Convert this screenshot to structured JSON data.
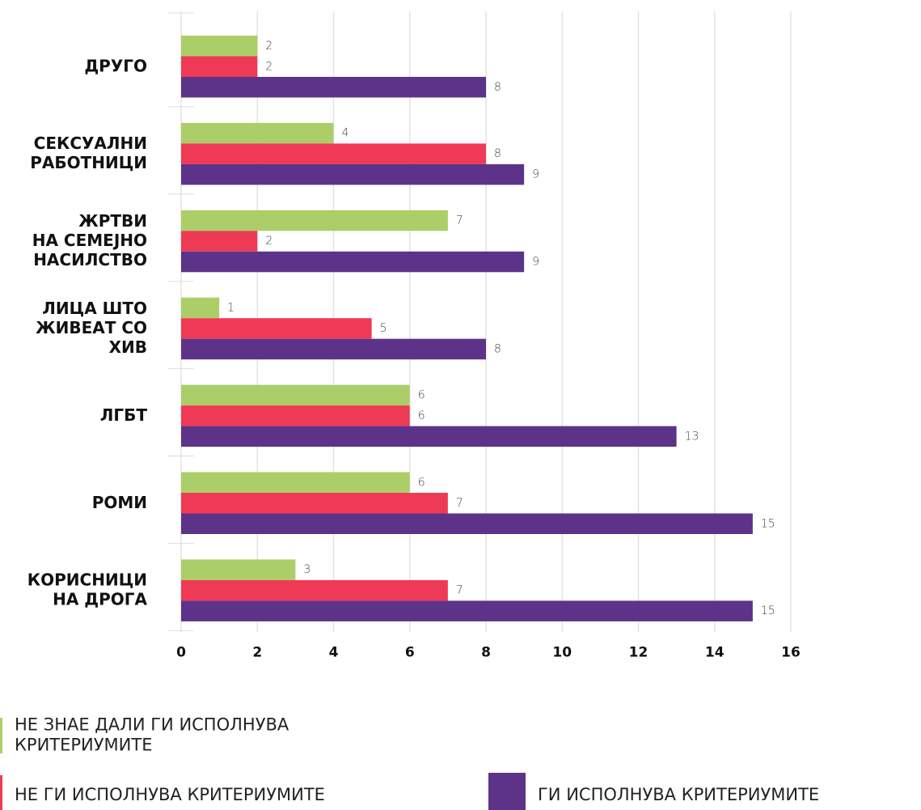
{
  "chart_data": {
    "type": "barh",
    "categories": [
      "ДРУГО",
      "СЕКСУАЛНИ\nРАБОТНИЦИ",
      "ЖРТВИ\nНА СЕМЕЈНО\nНАСИЛСТВО",
      "ЛИЦА ШТО\nЖИВЕАТ СО\nХИВ",
      "ЛГБТ",
      "РОМИ",
      "КОРИСНИЦИ\nНА ДРОГА"
    ],
    "series": [
      {
        "name": "НЕ ЗНАЕ ДАЛИ ГИ ИСПОЛНУВА\nКРИТЕРИУМИТЕ",
        "color": "#acce68",
        "values": [
          2,
          4,
          7,
          1,
          6,
          6,
          3
        ]
      },
      {
        "name": "НЕ ГИ ИСПОЛНУВА КРИТЕРИУМИТЕ",
        "color": "#ef3a55",
        "values": [
          2,
          8,
          2,
          5,
          6,
          7,
          7
        ]
      },
      {
        "name": "ГИ ИСПОЛНУВА КРИТЕРИУМИТЕ",
        "color": "#5d338a",
        "values": [
          8,
          9,
          9,
          8,
          13,
          15,
          15
        ]
      }
    ],
    "xlim": [
      0,
      16
    ],
    "xticks": [
      0,
      2,
      4,
      6,
      8,
      10,
      12,
      14,
      16
    ],
    "grid": true
  }
}
